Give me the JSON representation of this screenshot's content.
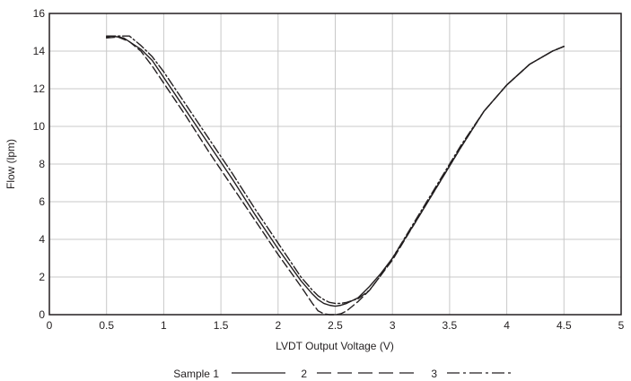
{
  "chart_data": {
    "type": "line",
    "title": "",
    "xlabel": "LVDT Output Voltage (V)",
    "ylabel": "Flow (lpm)",
    "xlim": [
      0,
      5
    ],
    "ylim": [
      0,
      16
    ],
    "x_ticks": [
      "0",
      "0.5",
      "1",
      "1.5",
      "2",
      "2.5",
      "3",
      "3.5",
      "4",
      "4.5",
      "5"
    ],
    "y_ticks": [
      "0",
      "2",
      "4",
      "6",
      "8",
      "10",
      "12",
      "14",
      "16"
    ],
    "grid": true,
    "legend_position": "bottom",
    "series": [
      {
        "name": "Sample 1",
        "legend_label": "Sample 1",
        "style": "solid",
        "x": [
          0.5,
          0.55,
          0.65,
          0.8,
          0.9,
          1.0,
          1.2,
          1.4,
          1.6,
          1.8,
          2.0,
          2.2,
          2.3,
          2.35,
          2.4,
          2.45,
          2.5,
          2.55,
          2.6,
          2.7,
          2.8,
          2.9,
          3.0,
          3.2,
          3.4,
          3.6,
          3.8,
          4.0,
          4.2,
          4.4,
          4.5
        ],
        "y": [
          14.75,
          14.8,
          14.7,
          14.1,
          13.5,
          12.6,
          10.8,
          9.0,
          7.2,
          5.3,
          3.5,
          1.8,
          1.1,
          0.8,
          0.6,
          0.5,
          0.45,
          0.5,
          0.6,
          0.9,
          1.5,
          2.2,
          3.0,
          4.9,
          6.9,
          8.9,
          10.8,
          12.2,
          13.3,
          14.0,
          14.25
        ]
      },
      {
        "name": "2",
        "legend_label": "2",
        "style": "dashed",
        "x": [
          0.5,
          0.6,
          0.7,
          0.8,
          0.9,
          1.0,
          1.2,
          1.4,
          1.6,
          1.8,
          2.0,
          2.2,
          2.3,
          2.35,
          2.4,
          2.45,
          2.5,
          2.55,
          2.6,
          2.7,
          2.8,
          2.9,
          3.0,
          3.2,
          3.4,
          3.6,
          3.8,
          4.0,
          4.2,
          4.4,
          4.5
        ],
        "y": [
          14.7,
          14.75,
          14.5,
          14.0,
          13.2,
          12.3,
          10.5,
          8.6,
          6.8,
          5.0,
          3.2,
          1.5,
          0.6,
          0.2,
          0.05,
          0.0,
          0.0,
          0.05,
          0.2,
          0.7,
          1.3,
          2.1,
          2.9,
          4.9,
          6.9,
          8.9,
          10.8,
          12.2,
          13.3,
          14.0,
          14.25
        ]
      },
      {
        "name": "3",
        "legend_label": "3",
        "style": "dash-dot",
        "x": [
          0.5,
          0.6,
          0.7,
          0.8,
          0.9,
          1.0,
          1.2,
          1.4,
          1.6,
          1.8,
          2.0,
          2.2,
          2.3,
          2.35,
          2.4,
          2.45,
          2.5,
          2.55,
          2.6,
          2.7,
          2.8,
          2.9,
          3.0,
          3.2,
          3.4,
          3.6,
          3.8,
          4.0,
          4.2,
          4.4,
          4.5
        ],
        "y": [
          14.8,
          14.8,
          14.8,
          14.3,
          13.7,
          12.9,
          11.1,
          9.3,
          7.5,
          5.6,
          3.8,
          2.0,
          1.3,
          1.0,
          0.8,
          0.65,
          0.6,
          0.6,
          0.65,
          0.85,
          1.3,
          2.1,
          3.0,
          5.0,
          7.0,
          9.0,
          10.8,
          12.2,
          13.3,
          14.0,
          14.25
        ]
      }
    ]
  }
}
